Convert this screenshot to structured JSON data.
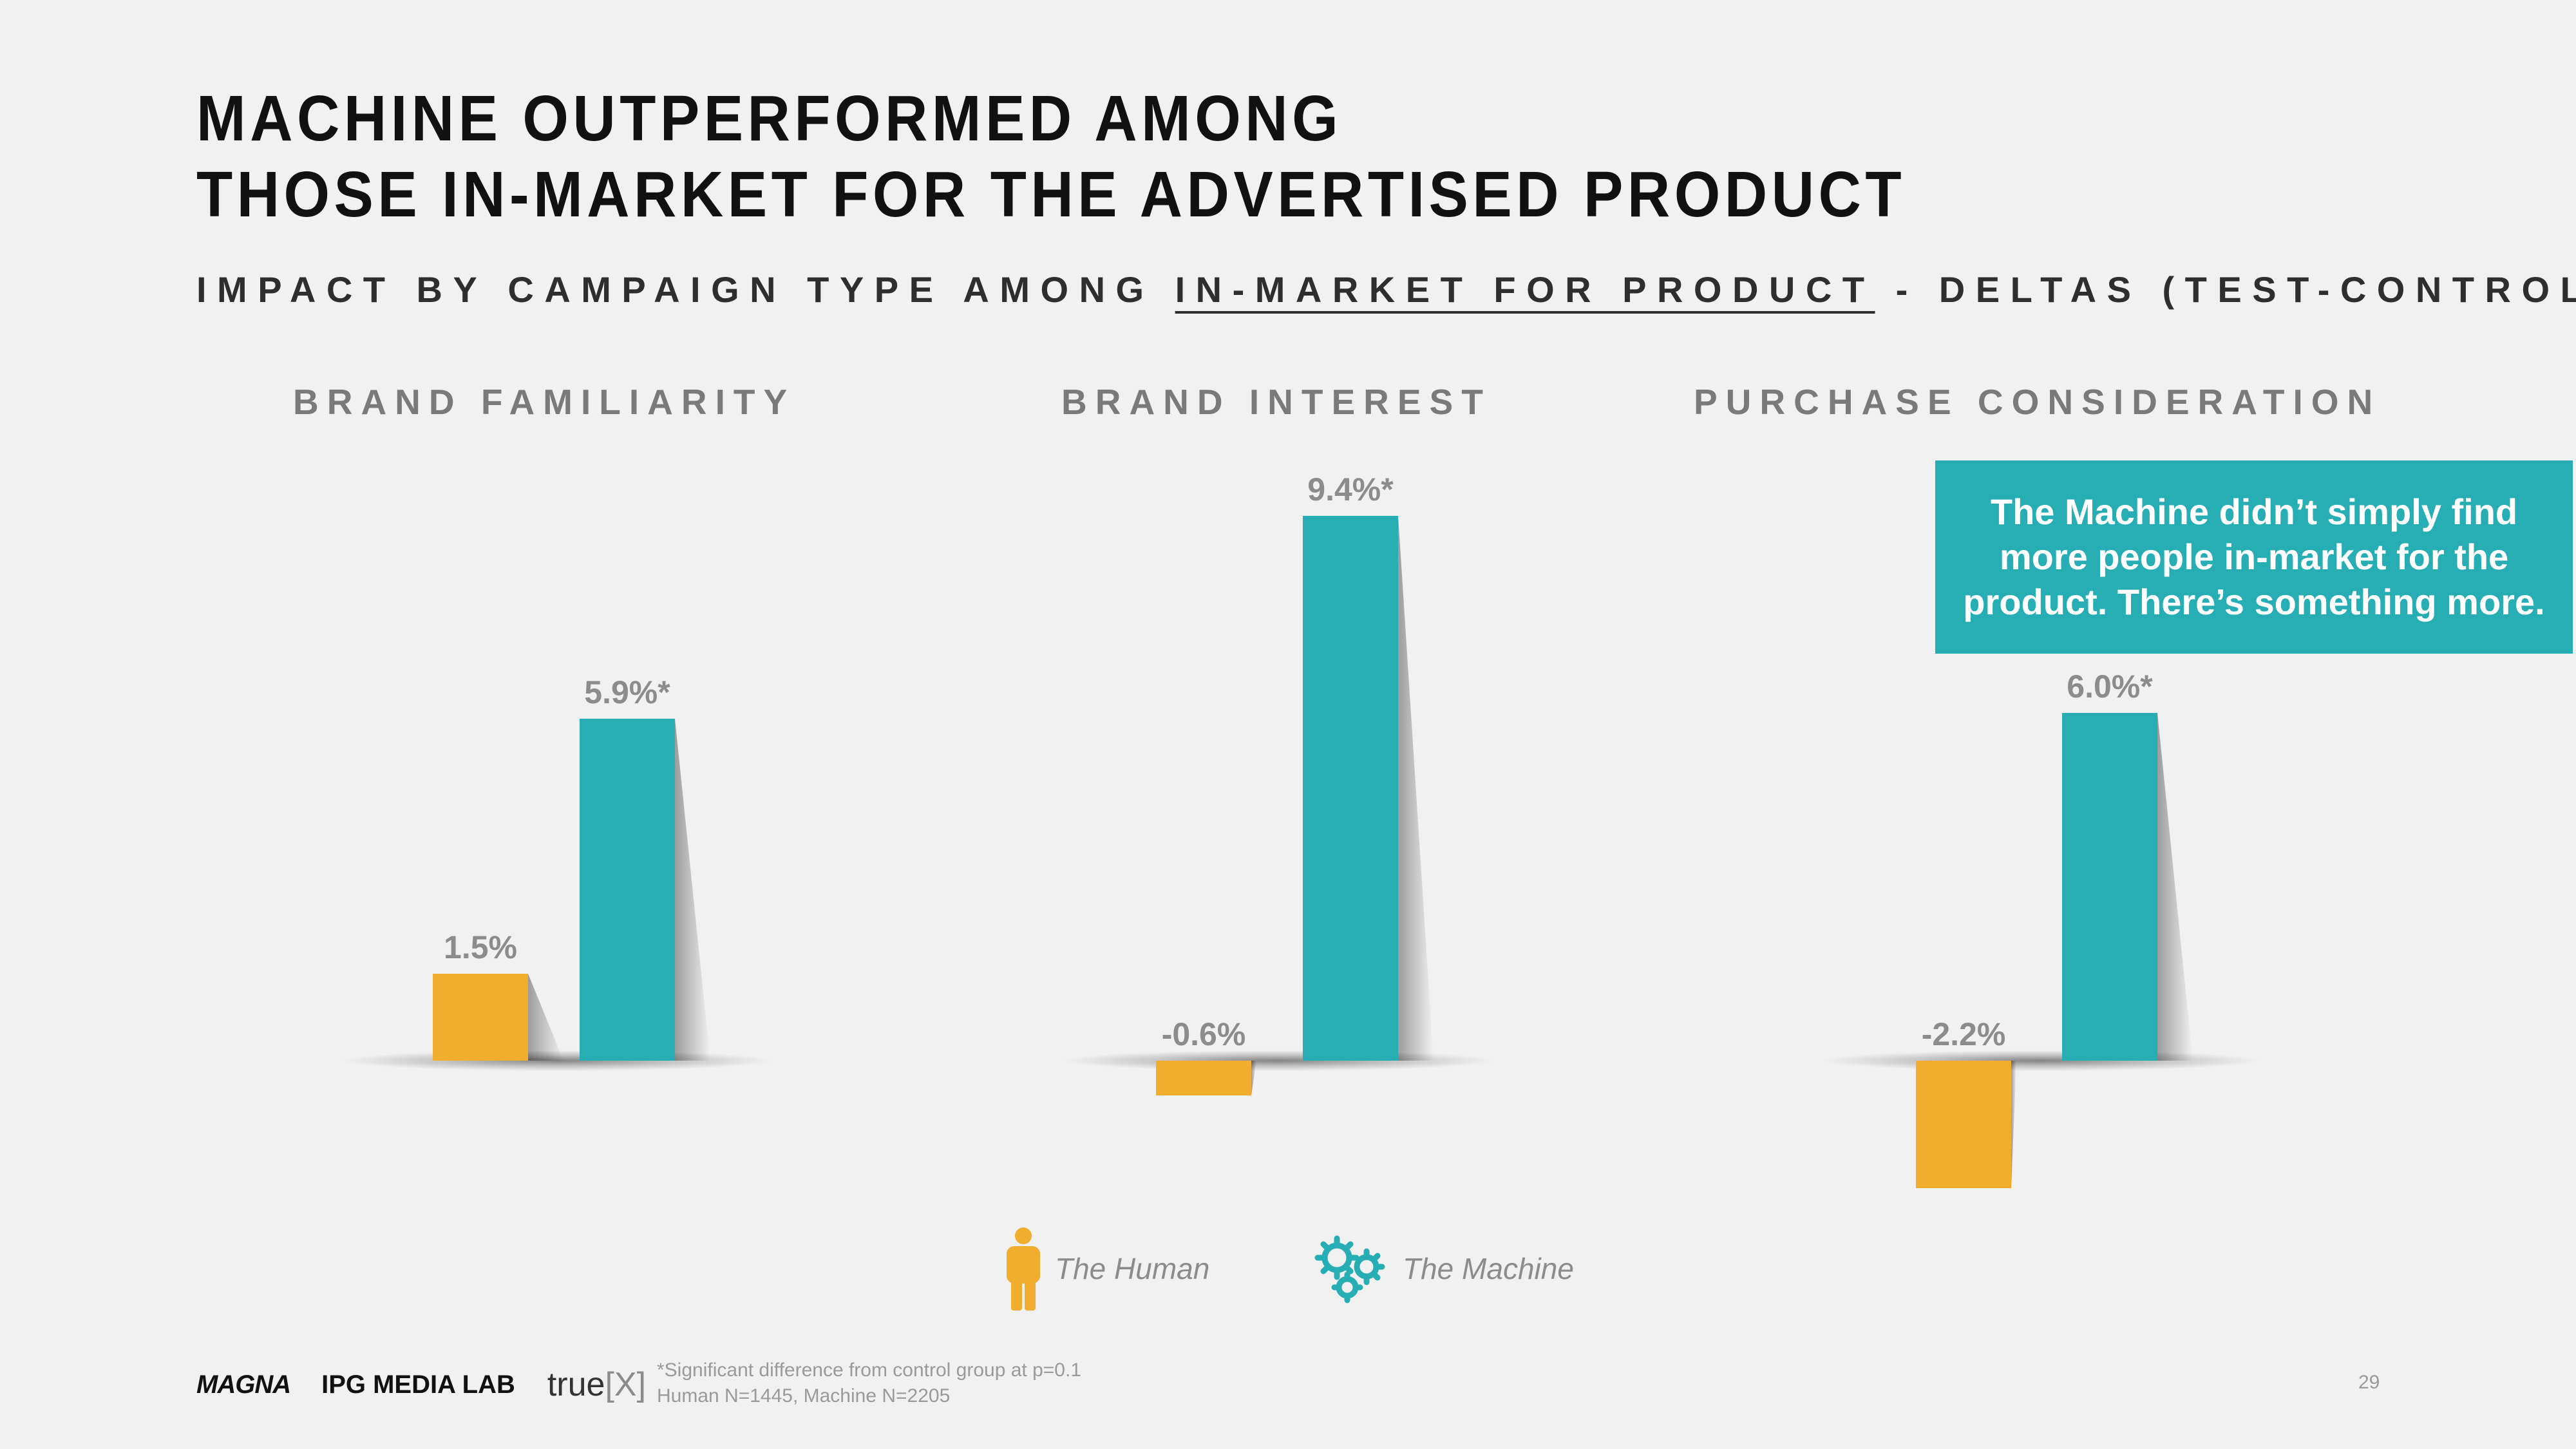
{
  "title": {
    "line1": "MACHINE OUTPERFORMED AMONG",
    "line2": "THOSE IN-MARKET FOR THE ADVERTISED PRODUCT"
  },
  "subtitle": {
    "prefix": "IMPACT BY CAMPAIGN TYPE AMONG ",
    "underlined": "IN-MARKET FOR PRODUCT",
    "suffix": " - DELTAS (TEST-CONTROL)"
  },
  "callout": "The Machine didn’t simply find more people in-market for the product. There’s something more.",
  "colors": {
    "human": "#f0ad2e",
    "machine": "#26aeb4"
  },
  "chart_data": [
    {
      "type": "bar",
      "title": "BRAND FAMILIARITY",
      "categories": [
        "The Human",
        "The Machine"
      ],
      "values": [
        1.5,
        5.9
      ],
      "labels": [
        "1.5%",
        "5.9%*"
      ],
      "unit": "%"
    },
    {
      "type": "bar",
      "title": "BRAND INTEREST",
      "categories": [
        "The Human",
        "The Machine"
      ],
      "values": [
        -0.6,
        9.4
      ],
      "labels": [
        "-0.6%",
        "9.4%*"
      ],
      "unit": "%"
    },
    {
      "type": "bar",
      "title": "PURCHASE CONSIDERATION",
      "categories": [
        "The Human",
        "The Machine"
      ],
      "values": [
        -2.2,
        6.0
      ],
      "labels": [
        "-2.2%",
        "6.0%*"
      ],
      "unit": "%"
    }
  ],
  "legend": {
    "human": {
      "label": "The Human",
      "icon": "person-icon"
    },
    "machine": {
      "label": "The Machine",
      "icon": "gears-icon"
    }
  },
  "footer": {
    "logos": {
      "magna": "MAGNA",
      "ipg": "IPG MEDIA LAB",
      "truex_word": "true",
      "truex_mark": "[X]"
    },
    "footnote_line1": "*Significant difference from control group at p=0.1",
    "footnote_line2": "Human N=1445, Machine N=2205",
    "page_number": "29"
  }
}
